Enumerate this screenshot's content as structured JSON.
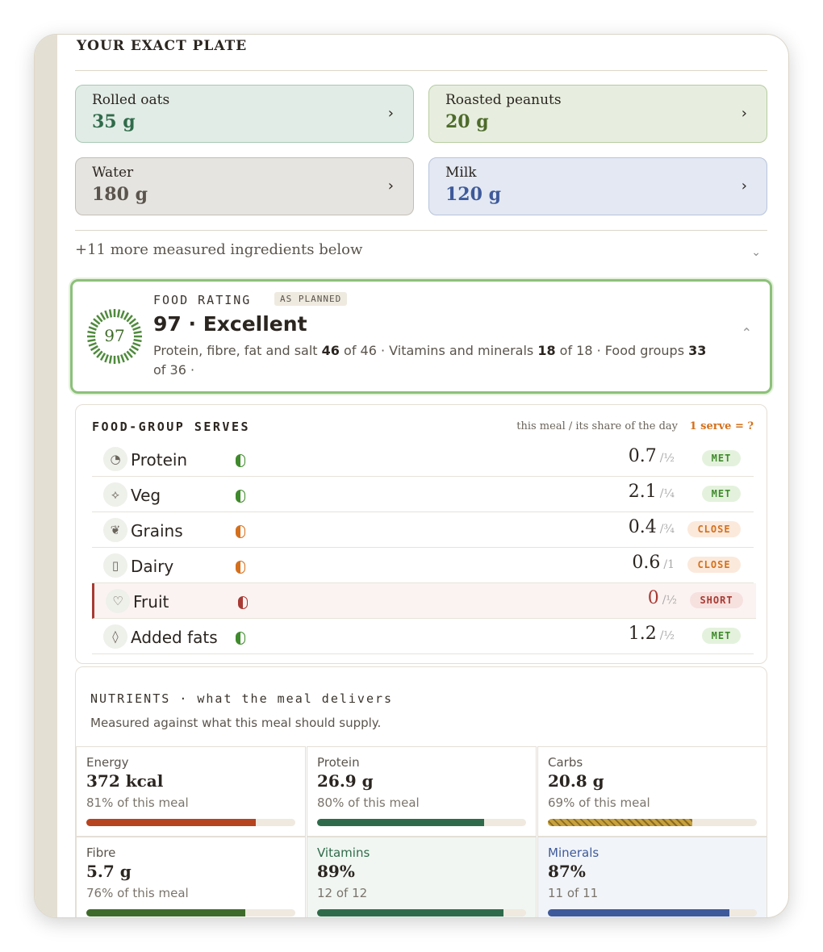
{
  "plate": {
    "title": "YOUR EXACT PLATE",
    "items": [
      {
        "name": "Rolled oats",
        "amount": "35 g"
      },
      {
        "name": "Roasted peanuts",
        "amount": "20 g"
      },
      {
        "name": "Water",
        "amount": "180 g"
      },
      {
        "name": "Milk",
        "amount": "120 g"
      }
    ],
    "more": "+11 more measured ingredients below"
  },
  "rating": {
    "label": "FOOD RATING",
    "badge": "AS PLANNED",
    "score": "97",
    "headline": "97 · Excellent",
    "detail": [
      "Protein, fibre, fat and salt ",
      "46",
      " of 46 · Vitamins and minerals ",
      "18",
      " of 18 · Food groups ",
      "33",
      " of 36 ·"
    ]
  },
  "serves": {
    "title": "FOOD-GROUP SERVES",
    "note": "this meal / its share of the day",
    "link": "1 serve = ?",
    "rows": [
      {
        "name": "Protein",
        "value": "0.7",
        "target": "/½",
        "status": "MET"
      },
      {
        "name": "Veg",
        "value": "2.1",
        "target": "/¼",
        "status": "MET"
      },
      {
        "name": "Grains",
        "value": "0.4",
        "target": "/¾",
        "status": "CLOSE"
      },
      {
        "name": "Dairy",
        "value": "0.6",
        "target": "/1",
        "status": "CLOSE"
      },
      {
        "name": "Fruit",
        "value": "0",
        "target": "/½",
        "status": "SHORT"
      },
      {
        "name": "Added fats",
        "value": "1.2",
        "target": "/½",
        "status": "MET"
      }
    ]
  },
  "nutrients": {
    "title": "NUTRIENTS",
    "title_suffix": "· what the meal delivers",
    "subtitle": "Measured against what this meal should supply.",
    "cards": [
      {
        "label": "Energy",
        "value": "372 kcal",
        "note": "81% of this meal",
        "pct": 81
      },
      {
        "label": "Protein",
        "value": "26.9 g",
        "note": "80% of this meal",
        "pct": 80
      },
      {
        "label": "Carbs",
        "value": "20.8 g",
        "note": "69% of this meal",
        "pct": 69
      },
      {
        "label": "Fibre",
        "value": "5.7 g",
        "note": "76% of this meal",
        "pct": 76
      },
      {
        "label": "Vitamins",
        "value": "89%",
        "note": "12 of 12",
        "pct": 89
      },
      {
        "label": "Minerals",
        "value": "87%",
        "note": "11 of 11",
        "pct": 87
      }
    ]
  }
}
